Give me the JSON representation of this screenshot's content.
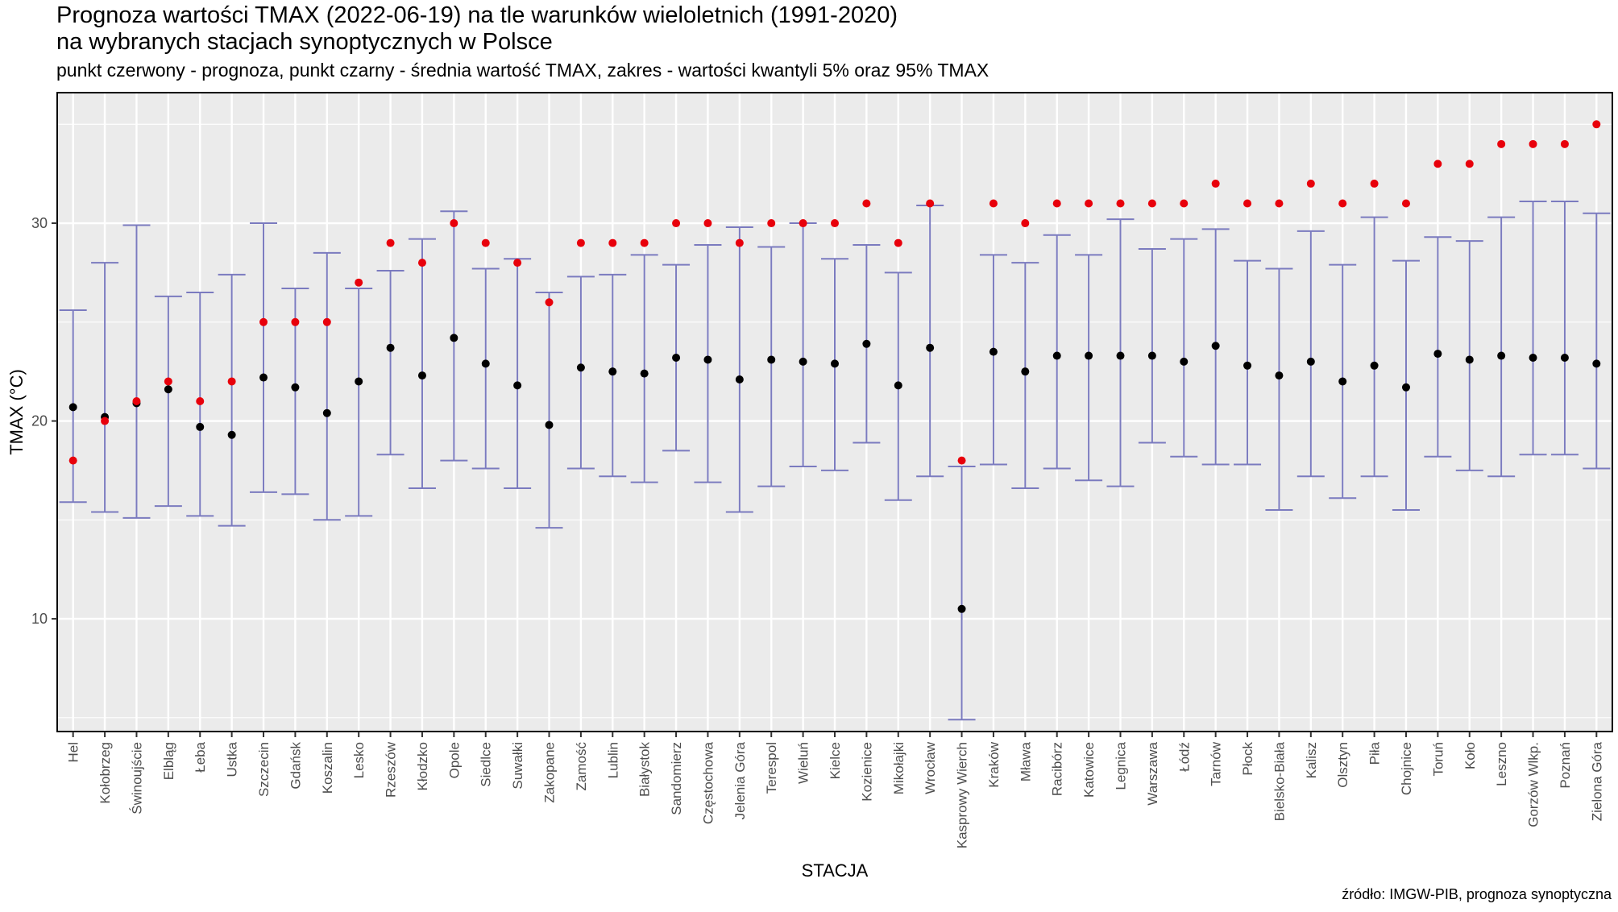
{
  "header": {
    "title_line1": "Prognoza wartości TMAX (2022-06-19) na tle warunków wieloletnich (1991-2020)",
    "title_line2": "na wybranych stacjach synoptycznych w Polsce",
    "subtitle": "punkt czerwony - prognoza, punkt czarny - średnia wartość TMAX, zakres - wartości kwantyli 5% oraz 95% TMAX"
  },
  "caption": "źródło: IMGW-PIB, prognoza synoptyczna",
  "colors": {
    "panel_bg": "#ebebeb",
    "grid": "#ffffff",
    "range": "#7b7bbf",
    "mean": "#000000",
    "forecast": "#e8000b"
  },
  "chart_data": {
    "type": "scatter",
    "xlabel": "STACJA",
    "ylabel": "TMAX (°C)",
    "ylim": [
      4.3,
      36.6
    ],
    "yticks": [
      10,
      20,
      30
    ],
    "grid": true,
    "legend": "none",
    "categories": [
      "Hel",
      "Kołobrzeg",
      "Świnoujście",
      "Elbląg",
      "Łeba",
      "Ustka",
      "Szczecin",
      "Gdańsk",
      "Koszalin",
      "Lesko",
      "Rzeszów",
      "Kłodzko",
      "Opole",
      "Siedlce",
      "Suwałki",
      "Zakopane",
      "Zamość",
      "Lublin",
      "Białystok",
      "Sandomierz",
      "Częstochowa",
      "Jelenia Góra",
      "Terespol",
      "Wieluń",
      "Kielce",
      "Kozienice",
      "Mikołajki",
      "Wrocław",
      "Kasprowy Wierch",
      "Kraków",
      "Mława",
      "Racibórz",
      "Katowice",
      "Legnica",
      "Warszawa",
      "Łódź",
      "Tarnów",
      "Płock",
      "Bielsko-Biała",
      "Kalisz",
      "Olsztyn",
      "Piła",
      "Chojnice",
      "Toruń",
      "Koło",
      "Leszno",
      "Gorzów Wlkp.",
      "Poznań",
      "Zielona Góra"
    ],
    "series": [
      {
        "key": "q05",
        "values": [
          15.9,
          15.4,
          15.1,
          15.7,
          15.2,
          14.7,
          16.4,
          16.3,
          15.0,
          15.2,
          18.3,
          16.6,
          18.0,
          17.6,
          16.6,
          14.6,
          17.6,
          17.2,
          16.9,
          18.5,
          16.9,
          15.4,
          16.7,
          17.7,
          17.5,
          18.9,
          16.0,
          17.2,
          4.9,
          17.8,
          16.6,
          17.6,
          17.0,
          16.7,
          18.9,
          18.2,
          17.8,
          17.8,
          15.5,
          17.2,
          16.1,
          17.2,
          15.5,
          18.2,
          17.5,
          17.2,
          18.3,
          18.3,
          17.6
        ]
      },
      {
        "key": "q95",
        "values": [
          25.6,
          28.0,
          29.9,
          26.3,
          26.5,
          27.4,
          30.0,
          26.7,
          28.5,
          26.7,
          27.6,
          29.2,
          30.6,
          27.7,
          28.2,
          26.5,
          27.3,
          27.4,
          28.4,
          27.9,
          28.9,
          29.8,
          28.8,
          30.0,
          28.2,
          28.9,
          27.5,
          30.9,
          17.7,
          28.4,
          28.0,
          29.4,
          28.4,
          30.2,
          28.7,
          29.2,
          29.7,
          28.1,
          27.7,
          29.6,
          27.9,
          30.3,
          28.1,
          29.3,
          29.1,
          30.3,
          31.1,
          31.1,
          30.5
        ]
      },
      {
        "key": "mean",
        "values": [
          20.7,
          20.2,
          20.9,
          21.6,
          19.7,
          19.3,
          22.2,
          21.7,
          20.4,
          22.0,
          23.7,
          22.3,
          24.2,
          22.9,
          21.8,
          19.8,
          22.7,
          22.5,
          22.4,
          23.2,
          23.1,
          22.1,
          23.1,
          23.0,
          22.9,
          23.9,
          21.8,
          23.7,
          10.5,
          23.5,
          22.5,
          23.3,
          23.3,
          23.3,
          23.3,
          23.0,
          23.8,
          22.8,
          22.3,
          23.0,
          22.0,
          22.8,
          21.7,
          23.4,
          23.1,
          23.3,
          23.2,
          23.2,
          22.9
        ]
      },
      {
        "key": "forecast",
        "values": [
          18,
          20,
          21,
          22,
          21,
          22,
          25,
          25,
          25,
          27,
          29,
          28,
          30,
          29,
          28,
          26,
          29,
          29,
          29,
          30,
          30,
          29,
          30,
          30,
          30,
          31,
          29,
          31,
          18,
          31,
          30,
          31,
          31,
          31,
          31,
          31,
          32,
          31,
          31,
          32,
          31,
          32,
          31,
          33,
          33,
          34,
          34,
          34,
          35
        ]
      }
    ]
  }
}
